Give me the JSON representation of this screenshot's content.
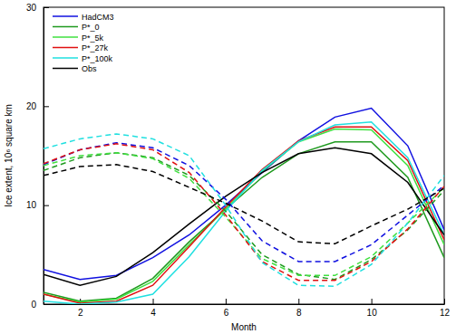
{
  "chart_data": {
    "type": "line",
    "x_label": "Month",
    "y_label": "Ice extent, 10⁶ square km",
    "x": [
      1,
      2,
      3,
      4,
      5,
      6,
      7,
      8,
      9,
      10,
      11,
      12
    ],
    "xlim": [
      1,
      12
    ],
    "xticks": [
      2,
      4,
      6,
      8,
      10,
      12
    ],
    "ylim": [
      0,
      30
    ],
    "yticks": [
      0,
      10,
      20,
      30
    ],
    "legend": "upper left",
    "series": [
      {
        "name": "HadCM3",
        "color": "#1010e0",
        "line_style": "solid",
        "values": [
          3.5,
          2.5,
          2.9,
          4.7,
          7.0,
          10.0,
          13.3,
          16.5,
          18.9,
          19.8,
          16.0,
          7.5
        ]
      },
      {
        "name": "P*_0",
        "color": "#1f9a1f",
        "line_style": "solid",
        "values": [
          1.2,
          0.3,
          0.6,
          2.6,
          6.3,
          9.6,
          12.8,
          15.2,
          16.4,
          16.4,
          12.8,
          4.7
        ]
      },
      {
        "name": "P*_5k",
        "color": "#40e040",
        "line_style": "solid",
        "values": [
          1.0,
          0.2,
          0.5,
          2.3,
          6.0,
          9.6,
          13.4,
          16.4,
          17.7,
          17.6,
          14.0,
          6.0
        ]
      },
      {
        "name": "P*_27k",
        "color": "#e01010",
        "line_style": "solid",
        "values": [
          1.0,
          0.1,
          0.3,
          1.9,
          5.8,
          9.8,
          13.6,
          16.5,
          17.9,
          17.9,
          14.5,
          6.5
        ]
      },
      {
        "name": "P*_100k",
        "color": "#20e0e0",
        "line_style": "solid",
        "values": [
          0.3,
          0.0,
          0.2,
          1.0,
          4.8,
          9.4,
          13.5,
          16.4,
          18.1,
          18.4,
          14.8,
          7.0
        ]
      },
      {
        "name": "Obs",
        "color": "#000000",
        "line_style": "solid",
        "values": [
          3.0,
          1.9,
          2.8,
          5.2,
          8.1,
          10.9,
          13.3,
          15.2,
          15.8,
          15.2,
          12.3,
          7.0
        ]
      },
      {
        "name": "HadCM3",
        "color": "#1010e0",
        "line_style": "dashed",
        "values": [
          14.1,
          15.6,
          16.3,
          15.8,
          14.0,
          10.6,
          6.4,
          4.3,
          4.3,
          6.0,
          9.0,
          12.0
        ]
      },
      {
        "name": "P*_0",
        "color": "#1f9a1f",
        "line_style": "dashed",
        "values": [
          13.5,
          14.8,
          15.3,
          14.8,
          13.0,
          9.4,
          5.0,
          3.0,
          2.5,
          4.5,
          7.5,
          11.5
        ]
      },
      {
        "name": "P*_5k",
        "color": "#40e040",
        "line_style": "dashed",
        "values": [
          14.0,
          15.0,
          15.3,
          14.7,
          12.7,
          8.8,
          4.6,
          2.9,
          2.9,
          4.8,
          8.2,
          11.8
        ]
      },
      {
        "name": "P*_27k",
        "color": "#e01010",
        "line_style": "dashed",
        "values": [
          14.2,
          15.6,
          16.2,
          15.6,
          13.3,
          9.0,
          4.3,
          2.4,
          2.4,
          4.3,
          7.6,
          11.9
        ]
      },
      {
        "name": "P*_100k",
        "color": "#20e0e0",
        "line_style": "dashed",
        "values": [
          15.7,
          16.7,
          17.2,
          16.7,
          15.0,
          10.0,
          4.2,
          1.9,
          1.8,
          4.0,
          8.2,
          13.0
        ]
      },
      {
        "name": "Obs",
        "color": "#000000",
        "line_style": "dashed",
        "values": [
          13.0,
          13.9,
          14.1,
          13.4,
          11.8,
          10.2,
          8.4,
          6.3,
          6.1,
          7.9,
          9.6,
          11.7
        ]
      }
    ]
  }
}
